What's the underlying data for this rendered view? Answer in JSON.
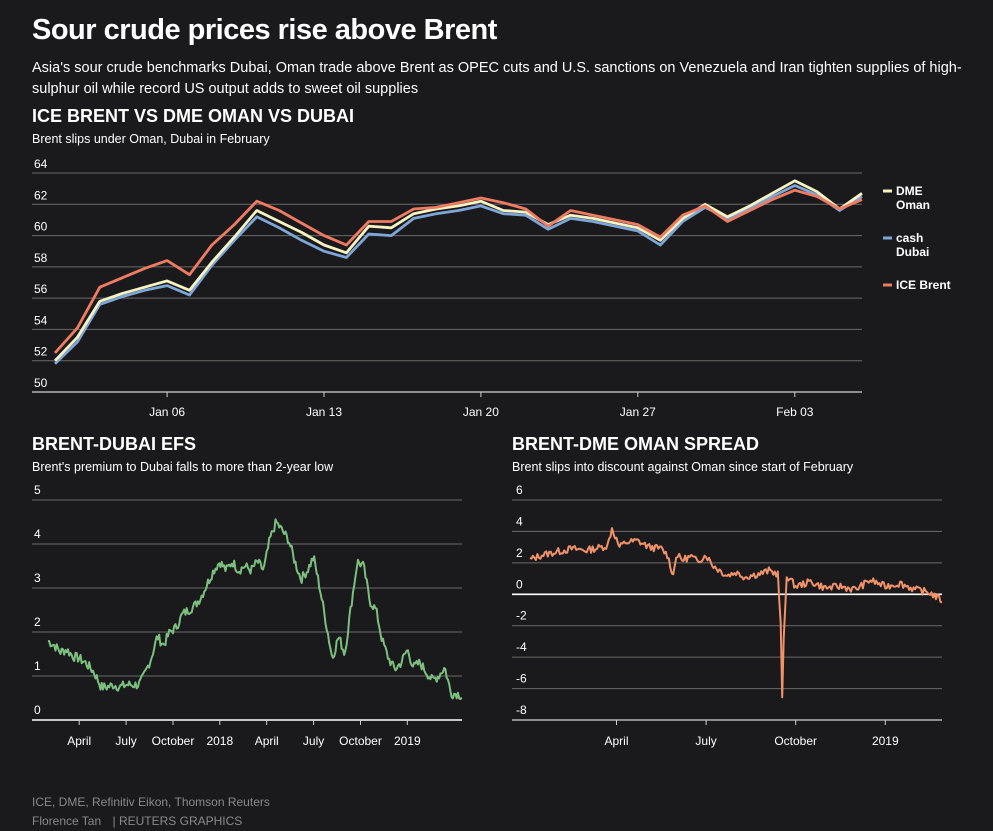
{
  "header": {
    "title": "Sour crude prices rise above Brent",
    "deck": "Asia's sour crude benchmarks Dubai, Oman trade above Brent as OPEC cuts and U.S. sanctions on Venezuela and Iran tighten supplies of high-sulphur oil while record US output adds to sweet oil supplies"
  },
  "footer": {
    "source": "ICE, DME, Refinitiv Eikon, Thomson Reuters",
    "author": "Florence Tan",
    "agency": "| REUTERS GRAPHICS"
  },
  "colors": {
    "background": "#1a191b",
    "oman": "#f5f3c1",
    "dubai": "#7ea7d8",
    "brent": "#ee7b62",
    "efs": "#7cc07f",
    "spread": "#f0926a",
    "grid": "#6b6b6b"
  },
  "chart_data": [
    {
      "type": "line",
      "title": "ICE BRENT VS DME OMAN VS DUBAI",
      "subtitle": "Brent slips under Oman, Dubai in February",
      "y_ticks": [
        "64",
        "62",
        "60",
        "58",
        "56",
        "54",
        "52",
        "50"
      ],
      "x_ticks": [
        "Jan 06",
        "Jan 13",
        "Jan 20",
        "Jan 27",
        "Feb 03"
      ],
      "ylim": [
        50,
        64
      ],
      "grid": true,
      "legend": "right",
      "x_units": "days from Jan 1, 2019",
      "series": [
        {
          "name": "DME Oman",
          "label_lines": [
            "DME",
            "Oman"
          ],
          "x": [
            0,
            1,
            2,
            3,
            4,
            5,
            6,
            7,
            8,
            9,
            10,
            11,
            12,
            13,
            14,
            15,
            16,
            17,
            18,
            19,
            20,
            21,
            22,
            23,
            24,
            25,
            26,
            27,
            28,
            29,
            30,
            31,
            32,
            33,
            34,
            35,
            36
          ],
          "values": [
            52.0,
            53.5,
            55.8,
            56.3,
            56.7,
            57.1,
            56.5,
            58.3,
            59.9,
            61.6,
            60.9,
            60.2,
            59.4,
            58.9,
            60.6,
            60.5,
            61.4,
            61.7,
            61.9,
            62.2,
            61.6,
            61.5,
            60.7,
            61.3,
            61.1,
            60.8,
            60.5,
            59.7,
            61.1,
            62.0,
            61.2,
            61.9,
            62.7,
            63.5,
            62.8,
            61.7,
            62.7
          ]
        },
        {
          "name": "cash Dubai",
          "label_lines": [
            "cash",
            "Dubai"
          ],
          "x": [
            0,
            1,
            2,
            3,
            4,
            5,
            6,
            7,
            8,
            9,
            10,
            11,
            12,
            13,
            14,
            15,
            16,
            17,
            18,
            19,
            20,
            21,
            22,
            23,
            24,
            25,
            26,
            27,
            28,
            29,
            30,
            31,
            32,
            33,
            34,
            35,
            36
          ],
          "values": [
            51.8,
            53.2,
            55.6,
            56.1,
            56.5,
            56.8,
            56.2,
            58.1,
            59.7,
            61.2,
            60.5,
            59.7,
            59.0,
            58.6,
            60.1,
            60.0,
            61.1,
            61.4,
            61.6,
            61.9,
            61.4,
            61.3,
            60.4,
            61.1,
            60.9,
            60.6,
            60.3,
            59.4,
            60.9,
            61.8,
            61.1,
            61.7,
            62.5,
            63.2,
            62.6,
            61.6,
            62.5
          ]
        },
        {
          "name": "ICE Brent",
          "label_lines": [
            "ICE Brent"
          ],
          "x": [
            0,
            1,
            2,
            3,
            4,
            5,
            6,
            7,
            8,
            9,
            10,
            11,
            12,
            13,
            14,
            15,
            16,
            17,
            18,
            19,
            20,
            21,
            22,
            23,
            24,
            25,
            26,
            27,
            28,
            29,
            30,
            31,
            32,
            33,
            34,
            35,
            36
          ],
          "values": [
            52.5,
            54.1,
            56.7,
            57.3,
            57.9,
            58.4,
            57.5,
            59.4,
            60.7,
            62.2,
            61.6,
            60.8,
            60.0,
            59.4,
            60.9,
            60.9,
            61.7,
            61.8,
            62.1,
            62.4,
            62.1,
            61.7,
            60.6,
            61.6,
            61.3,
            61.0,
            60.7,
            59.9,
            61.3,
            61.9,
            60.9,
            61.6,
            62.3,
            62.9,
            62.5,
            61.7,
            62.3
          ]
        }
      ]
    },
    {
      "type": "line",
      "title": "BRENT-DUBAI EFS",
      "subtitle": "Brent's premium to Dubai falls to more than 2-year low",
      "y_ticks": [
        "5",
        "4",
        "3",
        "2",
        "1",
        "0"
      ],
      "x_ticks": [
        "April",
        "July",
        "October",
        "2018",
        "April",
        "July",
        "October",
        "2019"
      ],
      "ylim": [
        0,
        5
      ],
      "grid": true,
      "x_units": "months from Feb 2017",
      "keypoints": {
        "x": [
          0.0,
          0.4,
          0.8,
          1.2,
          1.6,
          2.0,
          2.4,
          2.8,
          3.0,
          3.4,
          3.8,
          4.2,
          4.6,
          5.0,
          5.4,
          5.8,
          6.0,
          6.2,
          6.6,
          7.0,
          7.4,
          7.8,
          8.2,
          8.6,
          9.0,
          9.4,
          9.8,
          10.2,
          10.6,
          11.0,
          11.4,
          11.8,
          12.2,
          12.6,
          13.0,
          13.4,
          13.8,
          14.2,
          14.6,
          15.0,
          15.4,
          15.8,
          16.2,
          16.6,
          17.0,
          17.4,
          17.8,
          18.2,
          18.6,
          19.0,
          19.4,
          19.8,
          20.2,
          20.6,
          21.0,
          21.4,
          21.8,
          22.2,
          22.6,
          23.0,
          23.4,
          23.8,
          24.2,
          24.6,
          25.0,
          25.4,
          25.8,
          26.2,
          26.5
        ],
        "y": [
          1.8,
          1.7,
          1.55,
          1.6,
          1.45,
          1.4,
          1.3,
          1.15,
          1.05,
          0.75,
          0.75,
          0.8,
          0.75,
          0.8,
          0.8,
          0.8,
          0.9,
          1.05,
          1.4,
          1.9,
          1.7,
          2.0,
          2.1,
          2.4,
          2.5,
          2.6,
          2.8,
          3.1,
          3.4,
          3.6,
          3.4,
          3.6,
          3.4,
          3.5,
          3.4,
          3.6,
          3.4,
          4.1,
          4.5,
          4.3,
          4.1,
          3.6,
          3.2,
          3.4,
          3.7,
          3.0,
          2.2,
          1.4,
          1.9,
          1.5,
          2.6,
          3.6,
          3.5,
          2.7,
          2.5,
          1.8,
          1.4,
          1.15,
          1.3,
          1.6,
          1.2,
          1.3,
          1.1,
          0.9,
          1.0,
          1.2,
          0.6,
          0.6,
          0.55
        ]
      }
    },
    {
      "type": "line",
      "title": "BRENT-DME OMAN SPREAD",
      "subtitle": "Brent slips into discount against Oman since start of February",
      "y_ticks": [
        "6",
        "4",
        "2",
        "0",
        "-2",
        "-4",
        "-6",
        "-8"
      ],
      "x_ticks": [
        "April",
        "July",
        "October",
        "2019"
      ],
      "ylim": [
        -8,
        6
      ],
      "grid": true,
      "x_units": "months from Jan 2018",
      "keypoints": {
        "x": [
          0.6,
          1.0,
          1.5,
          2.0,
          2.5,
          3.0,
          3.2,
          3.35,
          3.6,
          3.8,
          4.2,
          4.6,
          5.0,
          5.2,
          5.4,
          5.5,
          5.7,
          6.0,
          6.2,
          6.5,
          6.7,
          6.9,
          7.2,
          7.5,
          7.8,
          8.0,
          8.3,
          8.6,
          8.9,
          9.0,
          9.05,
          9.1,
          9.2,
          9.5,
          10.0,
          10.5,
          11.0,
          11.5,
          12.0,
          12.5,
          13.0,
          13.5,
          14.0,
          14.4
        ],
        "y": [
          2.2,
          2.5,
          2.7,
          2.9,
          2.8,
          3.0,
          3.1,
          4.2,
          3.0,
          3.3,
          3.4,
          3.0,
          2.9,
          2.5,
          1.2,
          2.5,
          2.2,
          2.4,
          2.1,
          2.5,
          1.9,
          1.6,
          1.2,
          1.4,
          1.1,
          1.2,
          1.3,
          1.5,
          1.3,
          -2.0,
          -6.5,
          -3.0,
          1.2,
          0.5,
          0.8,
          0.4,
          0.5,
          0.3,
          0.9,
          0.5,
          0.7,
          0.3,
          0.1,
          -0.4
        ]
      }
    }
  ]
}
